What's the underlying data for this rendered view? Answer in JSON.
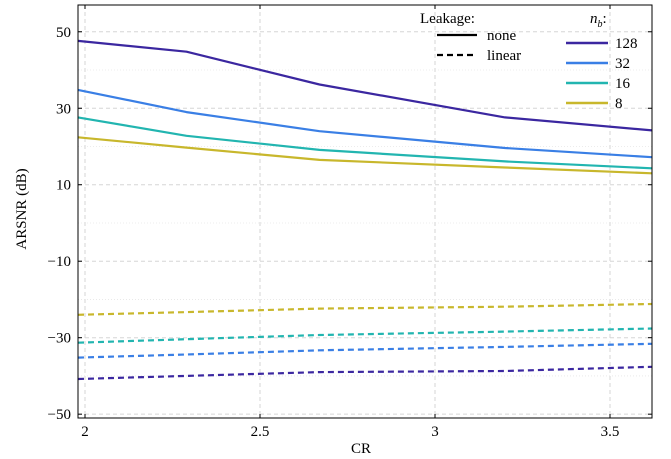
{
  "chart_data": {
    "type": "line",
    "xlabel": "CR",
    "ylabel": "ARSNR (dB)",
    "xlim": [
      1.98,
      3.62
    ],
    "ylim": [
      -51,
      57
    ],
    "x_ticks": [
      2,
      2.5,
      3,
      3.5
    ],
    "x_tick_labels": [
      "2",
      "2.5",
      "3",
      "3.5"
    ],
    "y_ticks": [
      -50,
      -30,
      -10,
      10,
      30,
      50
    ],
    "y_tick_labels": [
      "−50",
      "−30",
      "−10",
      "10",
      "30",
      "50"
    ],
    "y_minor_ticks": [
      -40,
      -20,
      0,
      20,
      40
    ],
    "grid": true,
    "x": [
      1.98,
      2.29,
      2.67,
      3.2,
      3.62
    ],
    "legend": {
      "placement": "top-right",
      "leakage_title": "Leakage:",
      "leakage_entries": [
        {
          "label": "none",
          "style": "solid"
        },
        {
          "label": "linear",
          "style": "dashed"
        }
      ],
      "nb_title": "n_b:",
      "nb_title_main": "n",
      "nb_title_sub": "b",
      "nb_title_suffix": ":"
    },
    "series": [
      {
        "name": "128",
        "color": "#3b27a0",
        "none": [
          47.6,
          44.8,
          36.2,
          27.6,
          24.2
        ],
        "linear": [
          -40.8,
          -40.0,
          -39.0,
          -38.7,
          -37.6
        ]
      },
      {
        "name": "32",
        "color": "#3a7fe5",
        "none": [
          34.8,
          29.0,
          24.0,
          19.6,
          17.2
        ],
        "linear": [
          -35.2,
          -34.4,
          -33.3,
          -32.4,
          -31.6
        ]
      },
      {
        "name": "16",
        "color": "#22b5b0",
        "none": [
          27.6,
          22.8,
          19.1,
          16.1,
          14.3
        ],
        "linear": [
          -31.3,
          -30.4,
          -29.3,
          -28.4,
          -27.6
        ]
      },
      {
        "name": "8",
        "color": "#c8b72c",
        "none": [
          22.4,
          19.7,
          16.5,
          14.5,
          13.0
        ],
        "linear": [
          -24.0,
          -23.3,
          -22.4,
          -21.9,
          -21.2
        ]
      }
    ]
  }
}
